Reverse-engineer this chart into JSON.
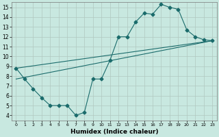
{
  "xlabel": "Humidex (Indice chaleur)",
  "xlim": [
    -0.5,
    23.5
  ],
  "ylim": [
    3.5,
    15.5
  ],
  "xticks": [
    0,
    1,
    2,
    3,
    4,
    5,
    6,
    7,
    8,
    9,
    10,
    11,
    12,
    13,
    14,
    15,
    16,
    17,
    18,
    19,
    20,
    21,
    22,
    23
  ],
  "yticks": [
    4,
    5,
    6,
    7,
    8,
    9,
    10,
    11,
    12,
    13,
    14,
    15
  ],
  "bg_color": "#c8e8e0",
  "grid_color": "#b0c8c0",
  "line_color": "#1a6b6b",
  "line1_x": [
    0,
    1,
    2,
    3,
    4,
    5,
    6,
    7,
    8,
    9,
    10,
    11,
    12,
    13,
    14,
    15,
    16,
    17,
    18,
    19,
    20,
    21,
    22,
    23
  ],
  "line1_y": [
    8.8,
    7.7,
    6.7,
    5.8,
    5.0,
    5.0,
    5.0,
    4.0,
    4.3,
    7.7,
    7.7,
    9.6,
    12.0,
    12.0,
    13.5,
    14.4,
    14.3,
    15.3,
    15.0,
    14.8,
    12.7,
    12.0,
    11.7,
    11.6
  ],
  "line2_x": [
    0,
    23
  ],
  "line2_y": [
    7.7,
    11.6
  ],
  "line3_x": [
    0,
    23
  ],
  "line3_y": [
    8.8,
    11.6
  ],
  "markersize": 2.5,
  "linewidth": 0.8
}
